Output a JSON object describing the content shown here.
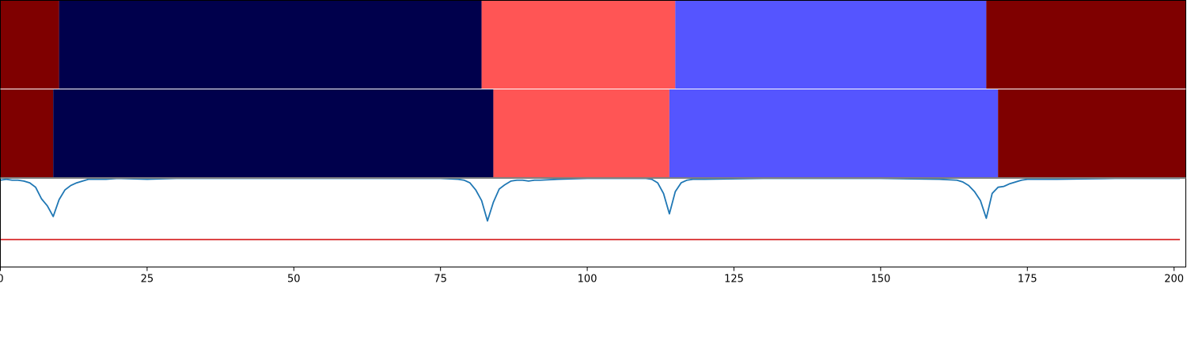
{
  "chart_data": {
    "type": "segmentation-plot",
    "title": "",
    "xlabel": "",
    "ylabel": "",
    "xlim": [
      0,
      202
    ],
    "x_ticks": [
      0,
      25,
      50,
      75,
      100,
      125,
      150,
      175,
      200
    ],
    "x_tick_labels": [
      "0",
      "25",
      "50",
      "75",
      "100",
      "125",
      "150",
      "175",
      "200"
    ],
    "segment_rows": [
      {
        "segments": [
          {
            "start": 0,
            "end": 10,
            "color": "#7f0000"
          },
          {
            "start": 10,
            "end": 82,
            "color": "#00004c"
          },
          {
            "start": 82,
            "end": 115,
            "color": "#ff5555"
          },
          {
            "start": 115,
            "end": 168,
            "color": "#5555ff"
          },
          {
            "start": 168,
            "end": 202,
            "color": "#7f0000"
          }
        ]
      },
      {
        "segments": [
          {
            "start": 0,
            "end": 9,
            "color": "#7f0000"
          },
          {
            "start": 9,
            "end": 84,
            "color": "#00004c"
          },
          {
            "start": 84,
            "end": 114,
            "color": "#ff5555"
          },
          {
            "start": 114,
            "end": 170,
            "color": "#5555ff"
          },
          {
            "start": 170,
            "end": 202,
            "color": "#7f0000"
          }
        ]
      }
    ],
    "line_panel": {
      "ylim": [
        0,
        1
      ],
      "threshold": 0.31,
      "threshold_color": "#d62728",
      "series_color": "#1f77b4",
      "x": [
        0,
        1,
        2,
        3,
        4,
        5,
        6,
        7,
        8,
        9,
        10,
        11,
        12,
        13,
        14,
        15,
        16,
        18,
        20,
        25,
        30,
        40,
        50,
        60,
        70,
        75,
        78,
        79,
        80,
        81,
        82,
        83,
        84,
        85,
        86,
        87,
        88,
        89,
        90,
        91,
        92,
        95,
        100,
        105,
        110,
        111,
        112,
        113,
        114,
        115,
        116,
        117,
        118,
        120,
        130,
        150,
        160,
        163,
        164,
        165,
        166,
        167,
        168,
        169,
        170,
        171,
        172,
        173,
        174,
        175,
        176,
        180,
        190,
        201
      ],
      "values": [
        0.98,
        0.99,
        0.98,
        0.98,
        0.97,
        0.95,
        0.9,
        0.77,
        0.69,
        0.57,
        0.76,
        0.87,
        0.92,
        0.95,
        0.97,
        0.99,
        0.99,
        0.99,
        1.0,
        0.99,
        1.0,
        1.0,
        1.0,
        1.0,
        1.0,
        1.0,
        0.99,
        0.98,
        0.95,
        0.87,
        0.75,
        0.52,
        0.73,
        0.88,
        0.93,
        0.97,
        0.98,
        0.98,
        0.97,
        0.98,
        0.98,
        0.99,
        1.0,
        1.0,
        1.0,
        0.99,
        0.95,
        0.83,
        0.6,
        0.85,
        0.95,
        0.98,
        0.99,
        0.99,
        1.0,
        1.0,
        0.99,
        0.98,
        0.96,
        0.92,
        0.85,
        0.75,
        0.55,
        0.83,
        0.9,
        0.91,
        0.94,
        0.96,
        0.98,
        0.99,
        0.99,
        0.99,
        1.0,
        1.0
      ]
    }
  }
}
